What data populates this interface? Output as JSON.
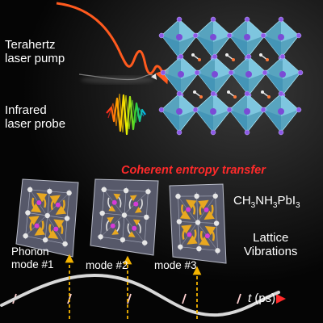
{
  "labels": {
    "pump_line1": "Terahertz",
    "pump_line2": "laser pump",
    "probe_line1": "Infrared",
    "probe_line2": "laser probe",
    "transfer_title": "Coherent entropy transfer",
    "formula": "CH3NH3PbI3",
    "lattice_line1": "Lattice",
    "lattice_line2": "Vibrations",
    "mode1_line1": "Phonon",
    "mode1_line2": "mode #1",
    "mode2": "mode #2",
    "mode3": "mode #3",
    "time_symbol": "t",
    "time_unit": "(ps)"
  },
  "colors": {
    "pump_wave": "#ff5a1e",
    "octahedron": "#5fb8d8",
    "atom": "#7a4bd6",
    "timeline": "#ff1a1a",
    "title": "#ff2a2a",
    "arrow": "#f4b400"
  }
}
